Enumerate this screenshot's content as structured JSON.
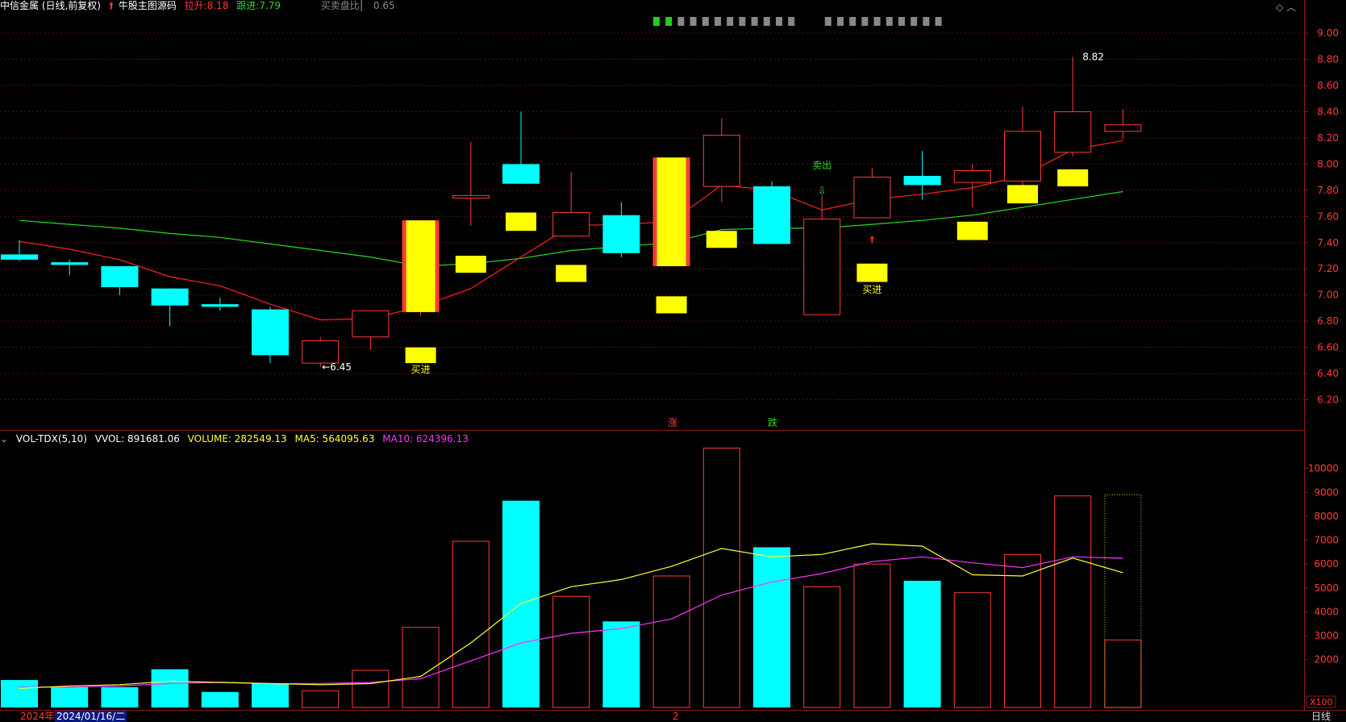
{
  "header": {
    "title": "中信金属 (日线,前复权)",
    "indicator_name": "牛股主图源码",
    "lashen_label": "拉升:",
    "lashen_value": "8.18",
    "genjin_label": "跟进:",
    "genjin_value": "7.79",
    "ratio_label": "买卖盘比",
    "ratio_value": "0.65"
  },
  "volume_header": {
    "name": "VOL-TDX(5,10)",
    "vvol": "VVOL: 891681.06",
    "volume": "VOLUME: 282549.13",
    "ma5": "MA5: 564095.63",
    "ma10": "MA10: 624396.13"
  },
  "footer": {
    "year": "2024年",
    "selected_date": "2024/01/16/二",
    "month_mark": "2",
    "period": "日线",
    "unit": "X100"
  },
  "colors": {
    "up": "#ff3b3b",
    "down": "#00ffff",
    "signal": "#ffff00",
    "ma_short": "#ff2020",
    "ma_long": "#22dd22",
    "vol_ma5": "#ffff33",
    "vol_ma10": "#ff33ff"
  },
  "chart_data": [
    {
      "type": "candlestick",
      "price_ticks": [
        9.0,
        8.8,
        8.6,
        8.4,
        8.2,
        8.0,
        7.8,
        7.6,
        7.4,
        7.2,
        7.0,
        6.8,
        6.6,
        6.4,
        6.2
      ],
      "ylim": [
        6.0,
        9.05
      ],
      "candles": [
        {
          "open": 7.31,
          "close": 7.27,
          "high": 7.42,
          "low": 7.26
        },
        {
          "open": 7.25,
          "close": 7.23,
          "high": 7.27,
          "low": 7.15
        },
        {
          "open": 7.22,
          "close": 7.06,
          "high": 7.22,
          "low": 7.0
        },
        {
          "open": 7.05,
          "close": 6.92,
          "high": 7.05,
          "low": 6.76
        },
        {
          "open": 6.93,
          "close": 6.91,
          "high": 6.98,
          "low": 6.88
        },
        {
          "open": 6.89,
          "close": 6.54,
          "high": 6.91,
          "low": 6.48
        },
        {
          "open": 6.48,
          "close": 6.65,
          "high": 6.68,
          "low": 6.45
        },
        {
          "open": 6.68,
          "close": 6.88,
          "high": 6.88,
          "low": 6.58
        },
        {
          "open": 6.87,
          "close": 7.57,
          "high": 7.57,
          "low": 6.84,
          "limit": true
        },
        {
          "open": 7.74,
          "close": 7.76,
          "high": 8.17,
          "low": 7.53
        },
        {
          "open": 8.0,
          "close": 7.85,
          "high": 8.4,
          "low": 7.85
        },
        {
          "open": 7.45,
          "close": 7.63,
          "high": 7.94,
          "low": 7.45
        },
        {
          "open": 7.61,
          "close": 7.32,
          "high": 7.71,
          "low": 7.29
        },
        {
          "open": 7.22,
          "close": 8.05,
          "high": 8.05,
          "low": 7.22,
          "limit": true
        },
        {
          "open": 7.83,
          "close": 8.22,
          "high": 8.35,
          "low": 7.71
        },
        {
          "open": 7.83,
          "close": 7.39,
          "high": 7.87,
          "low": 7.39
        },
        {
          "open": 6.85,
          "close": 7.58,
          "high": 7.76,
          "low": 6.85
        },
        {
          "open": 7.59,
          "close": 7.9,
          "high": 7.97,
          "low": 7.59
        },
        {
          "open": 7.91,
          "close": 7.84,
          "high": 8.1,
          "low": 7.73
        },
        {
          "open": 7.86,
          "close": 7.95,
          "high": 8.0,
          "low": 7.67
        },
        {
          "open": 7.87,
          "close": 8.25,
          "high": 8.44,
          "low": 7.8
        },
        {
          "open": 8.09,
          "close": 8.4,
          "high": 8.82,
          "low": 8.06
        },
        {
          "open": 8.25,
          "close": 8.3,
          "high": 8.42,
          "low": 8.19
        }
      ],
      "ma_short": [
        7.41,
        7.35,
        7.27,
        7.14,
        7.07,
        6.93,
        6.81,
        6.82,
        6.91,
        7.05,
        7.29,
        7.53,
        7.54,
        7.56,
        7.84,
        7.8,
        7.65,
        7.73,
        7.77,
        7.82,
        7.91,
        8.11,
        8.18
      ],
      "ma_long": [
        7.57,
        7.54,
        7.51,
        7.47,
        7.44,
        7.39,
        7.34,
        7.29,
        7.22,
        7.24,
        7.28,
        7.34,
        7.37,
        7.4,
        7.5,
        7.51,
        7.51,
        7.54,
        7.57,
        7.61,
        7.67,
        7.73,
        7.79
      ],
      "signal_boxes": [
        {
          "i": 8,
          "top": 6.6,
          "bottom": 6.48
        },
        {
          "i": 9,
          "top": 7.3,
          "bottom": 7.17
        },
        {
          "i": 10,
          "top": 7.63,
          "bottom": 7.49
        },
        {
          "i": 11,
          "top": 7.23,
          "bottom": 7.1
        },
        {
          "i": 13,
          "top": 6.99,
          "bottom": 6.86
        },
        {
          "i": 14,
          "top": 7.49,
          "bottom": 7.36
        },
        {
          "i": 17,
          "top": 7.24,
          "bottom": 7.1
        },
        {
          "i": 19,
          "top": 7.56,
          "bottom": 7.42
        },
        {
          "i": 20,
          "top": 7.84,
          "bottom": 7.7
        },
        {
          "i": 21,
          "top": 7.96,
          "bottom": 7.83
        }
      ],
      "annotations": [
        {
          "text": "←6.45",
          "i": 6,
          "price": 6.45,
          "color": "#ffffff"
        },
        {
          "text": "8.82",
          "i": 21,
          "price": 8.82,
          "color": "#ffffff"
        },
        {
          "text": "买进",
          "i": 8,
          "price": 6.43,
          "color": "#ffff00"
        },
        {
          "text": "买进",
          "i": 17,
          "price": 7.04,
          "color": "#ffff00"
        },
        {
          "text": "卖出",
          "i": 16,
          "price": 7.99,
          "color": "#22dd22"
        }
      ],
      "zhang_label": "涨",
      "die_label": "跌"
    },
    {
      "type": "bar",
      "name": "VOL-TDX(5,10)",
      "ticks": [
        10000,
        9000,
        8000,
        7000,
        6000,
        5000,
        4000,
        3000,
        2000
      ],
      "ylim": [
        0,
        11000
      ],
      "volumes": [
        1150,
        850,
        850,
        1600,
        650,
        1000,
        700,
        1550,
        3350,
        6950,
        8650,
        4650,
        3600,
        5500,
        10850,
        6700,
        5050,
        6000,
        5300,
        4800,
        6400,
        8850,
        2825
      ],
      "last_bar_limit": 8900,
      "ma5": [
        800,
        900,
        950,
        1100,
        1050,
        1000,
        950,
        1000,
        1300,
        2700,
        4350,
        5050,
        5350,
        5900,
        6650,
        6300,
        6400,
        6850,
        6750,
        5550,
        5500,
        6250,
        5640
      ],
      "ma10": [
        850,
        850,
        900,
        1000,
        1050,
        1000,
        1000,
        1050,
        1200,
        1950,
        2700,
        3100,
        3300,
        3700,
        4700,
        5250,
        5600,
        6100,
        6300,
        6050,
        5850,
        6300,
        6244
      ]
    }
  ]
}
